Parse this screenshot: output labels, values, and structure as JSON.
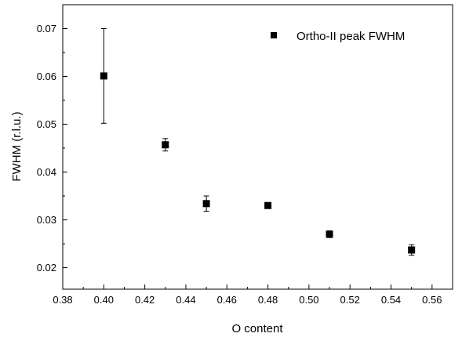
{
  "chart_data": {
    "type": "scatter",
    "title": "",
    "xlabel": "O content",
    "ylabel": "FWHM (r.l.u.)",
    "xlim": [
      0.38,
      0.57
    ],
    "ylim": [
      0.0155,
      0.075
    ],
    "xticks": [
      "0.38",
      "0.40",
      "0.42",
      "0.44",
      "0.46",
      "0.48",
      "0.50",
      "0.52",
      "0.54",
      "0.56"
    ],
    "yticks": [
      "0.02",
      "0.03",
      "0.04",
      "0.05",
      "0.06",
      "0.07"
    ],
    "grid": false,
    "legend_position": "top-right",
    "series": [
      {
        "name": "Ortho-II peak FWHM",
        "marker": "square",
        "color": "#000000",
        "points": [
          {
            "x": 0.4,
            "y": 0.0601,
            "err": 0.0099
          },
          {
            "x": 0.43,
            "y": 0.0457,
            "err": 0.0013
          },
          {
            "x": 0.45,
            "y": 0.0334,
            "err": 0.0016
          },
          {
            "x": 0.48,
            "y": 0.033,
            "err": 0.0004
          },
          {
            "x": 0.51,
            "y": 0.027,
            "err": 0.0007
          },
          {
            "x": 0.55,
            "y": 0.0237,
            "err": 0.0011
          }
        ]
      }
    ]
  }
}
